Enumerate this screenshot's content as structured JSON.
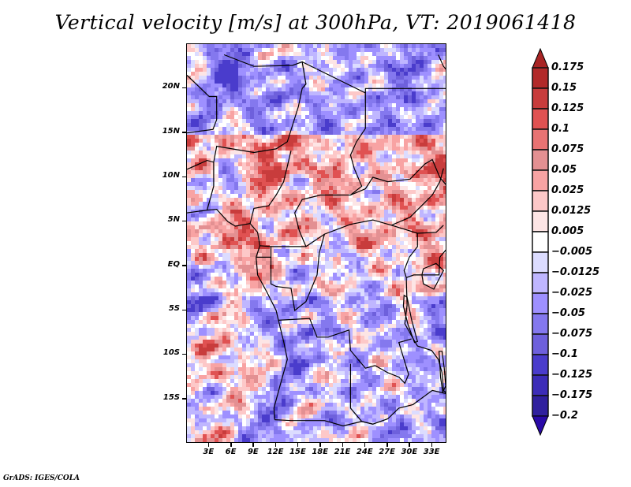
{
  "title": "Vertical velocity [m/s] at 300hPa, VT: 2019061418",
  "footer": "GrADS: IGES/COLA",
  "map": {
    "lat_range": [
      -20,
      25
    ],
    "lon_range": [
      0,
      35
    ],
    "lat_ticks": [
      {
        "value": 20,
        "label": "20N"
      },
      {
        "value": 15,
        "label": "15N"
      },
      {
        "value": 10,
        "label": "10N"
      },
      {
        "value": 5,
        "label": "5N"
      },
      {
        "value": 0,
        "label": "EQ"
      },
      {
        "value": -5,
        "label": "5S"
      },
      {
        "value": -10,
        "label": "10S"
      },
      {
        "value": -15,
        "label": "15S"
      }
    ],
    "lon_ticks": [
      {
        "value": 3,
        "label": "3E"
      },
      {
        "value": 6,
        "label": "6E"
      },
      {
        "value": 9,
        "label": "9E"
      },
      {
        "value": 12,
        "label": "12E"
      },
      {
        "value": 15,
        "label": "15E"
      },
      {
        "value": 18,
        "label": "18E"
      },
      {
        "value": 21,
        "label": "21E"
      },
      {
        "value": 24,
        "label": "24E"
      },
      {
        "value": 27,
        "label": "27E"
      },
      {
        "value": 30,
        "label": "30E"
      },
      {
        "value": 33,
        "label": "33E"
      }
    ]
  },
  "colorbar": {
    "labels": [
      "0.175",
      "0.15",
      "0.125",
      "0.1",
      "0.075",
      "0.05",
      "0.025",
      "0.0125",
      "0.005",
      "-0.005",
      "-0.0125",
      "-0.025",
      "-0.05",
      "-0.075",
      "-0.1",
      "-0.125",
      "-0.175",
      "-0.2"
    ],
    "top_arrow_color": "#a82424",
    "bottom_arrow_color": "#2a0aa8",
    "colors": [
      "#b22a2a",
      "#c83c3c",
      "#e05252",
      "#e87373",
      "#e39092",
      "#f8a3a3",
      "#fdc8c8",
      "#fde5e5",
      "#ffffff",
      "#dcdcff",
      "#bfb6ff",
      "#9e90ff",
      "#8478ee",
      "#6e60dc",
      "#4a3ccc",
      "#3c2cb8",
      "#30209e"
    ]
  }
}
